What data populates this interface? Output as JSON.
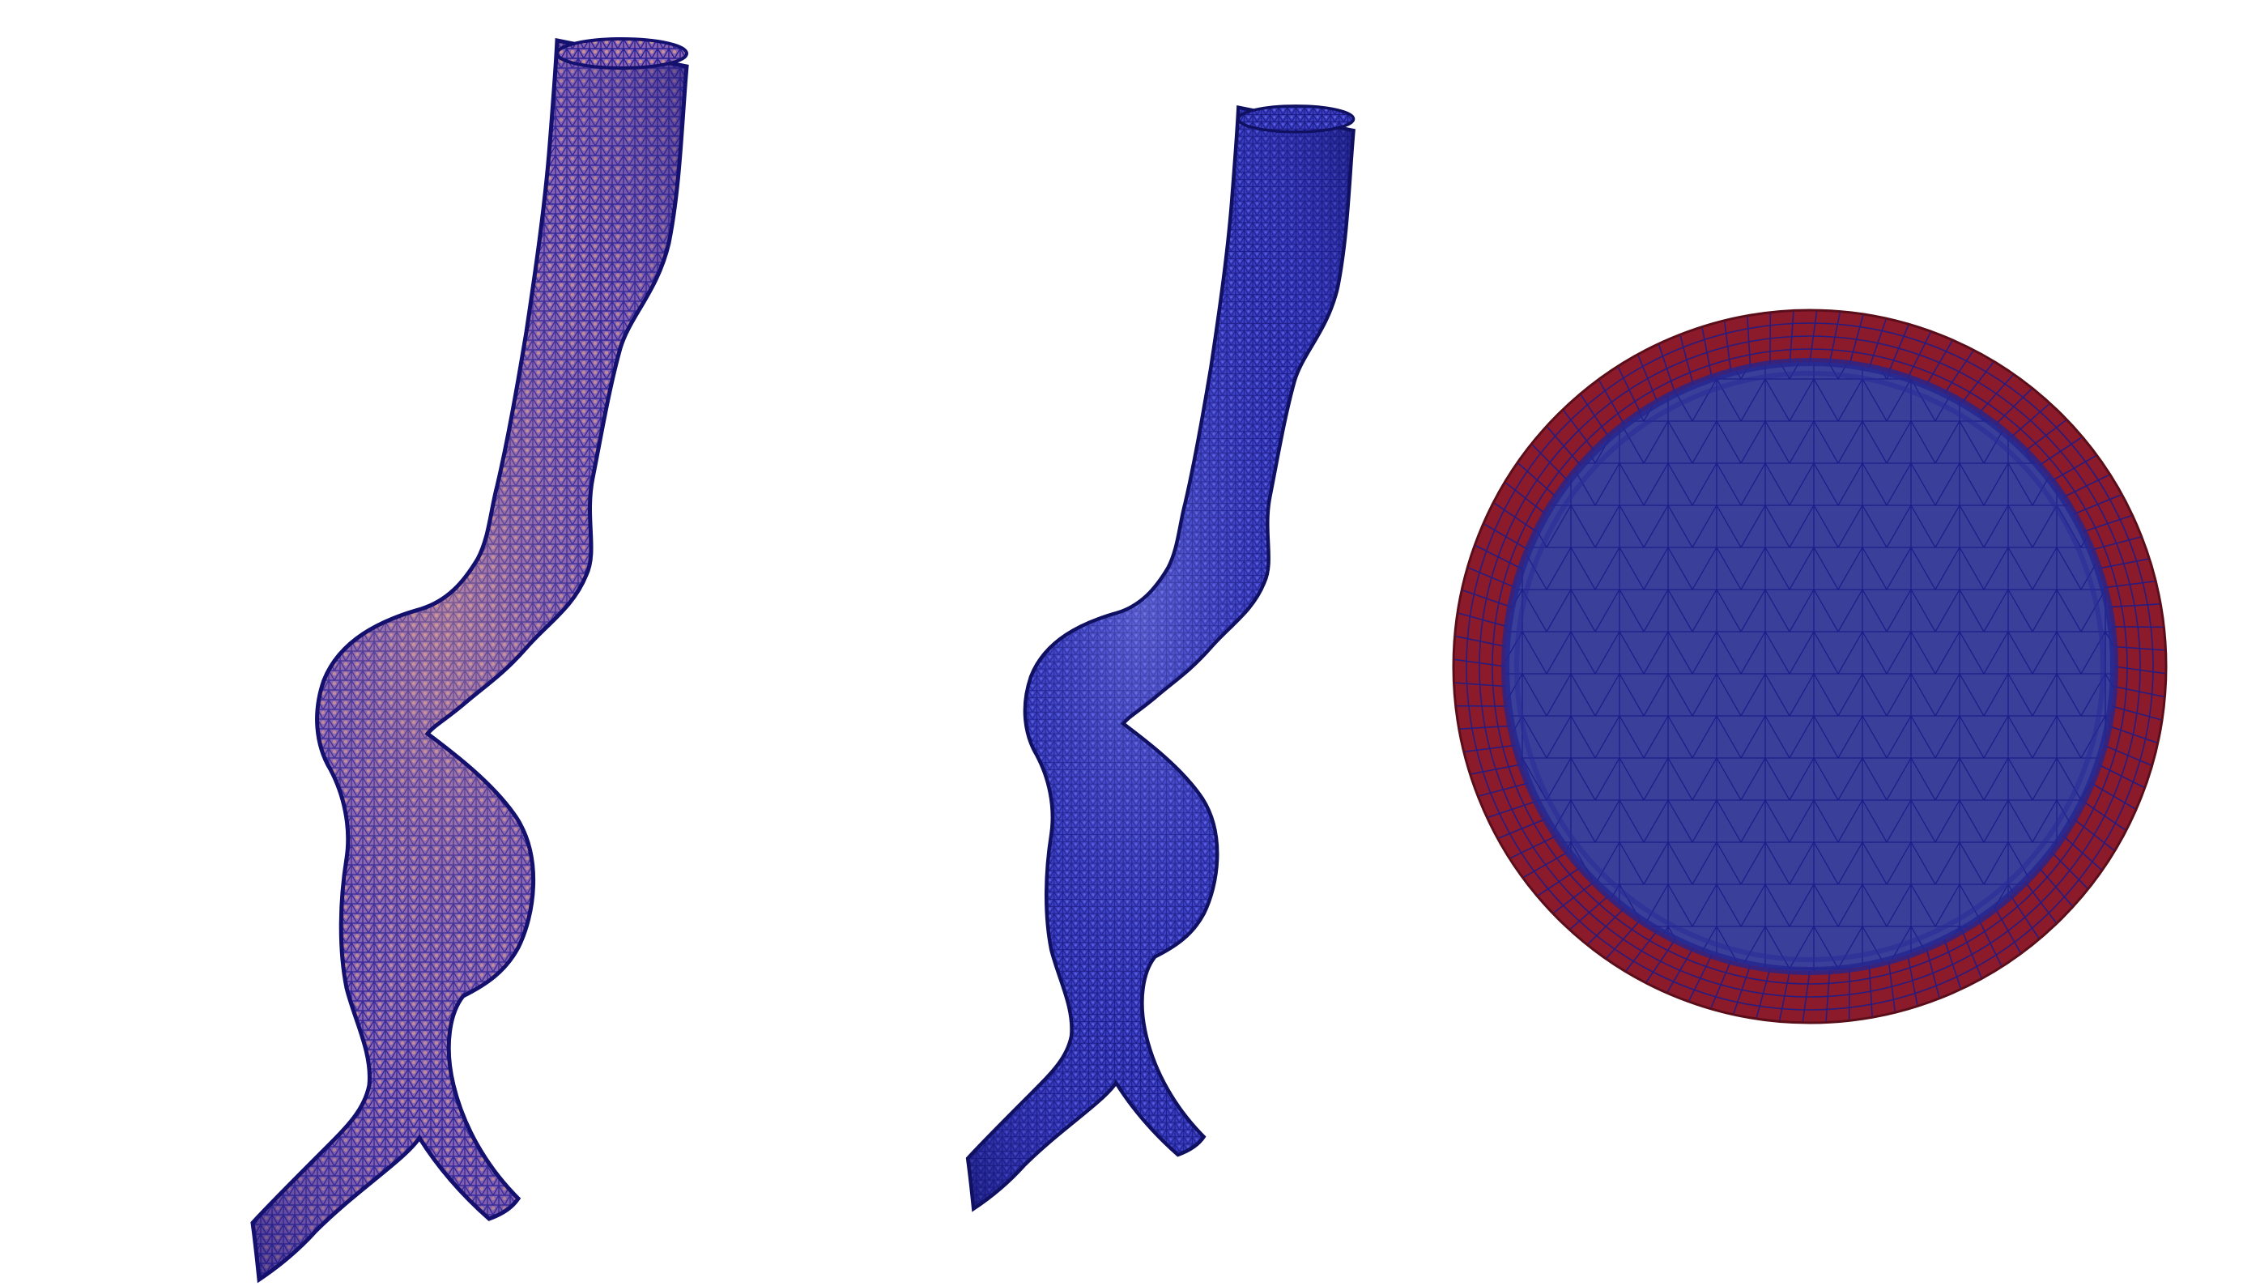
{
  "figure": {
    "panels": [
      {
        "id": "vessel-surface-mesh-coarse",
        "kind": "aneurysm-vessel-surface-mesh"
      },
      {
        "id": "vessel-surface-mesh-fine",
        "kind": "aneurysm-vessel-surface-mesh"
      },
      {
        "id": "vessel-cross-section-mesh",
        "kind": "circular-cross-section-mesh"
      }
    ],
    "colors": {
      "background": "#ffffff",
      "vessel_fill_left": "#7a5fb8",
      "vessel_fill_left_highlight": "#c98a7a",
      "vessel_fill_middle": "#3b3fc8",
      "vessel_fill_middle_highlight": "#6a70e0",
      "mesh_edge": "#1a1a8c",
      "wall_layer": "#8b1a2a",
      "lumen": "#3a3f9a"
    }
  }
}
